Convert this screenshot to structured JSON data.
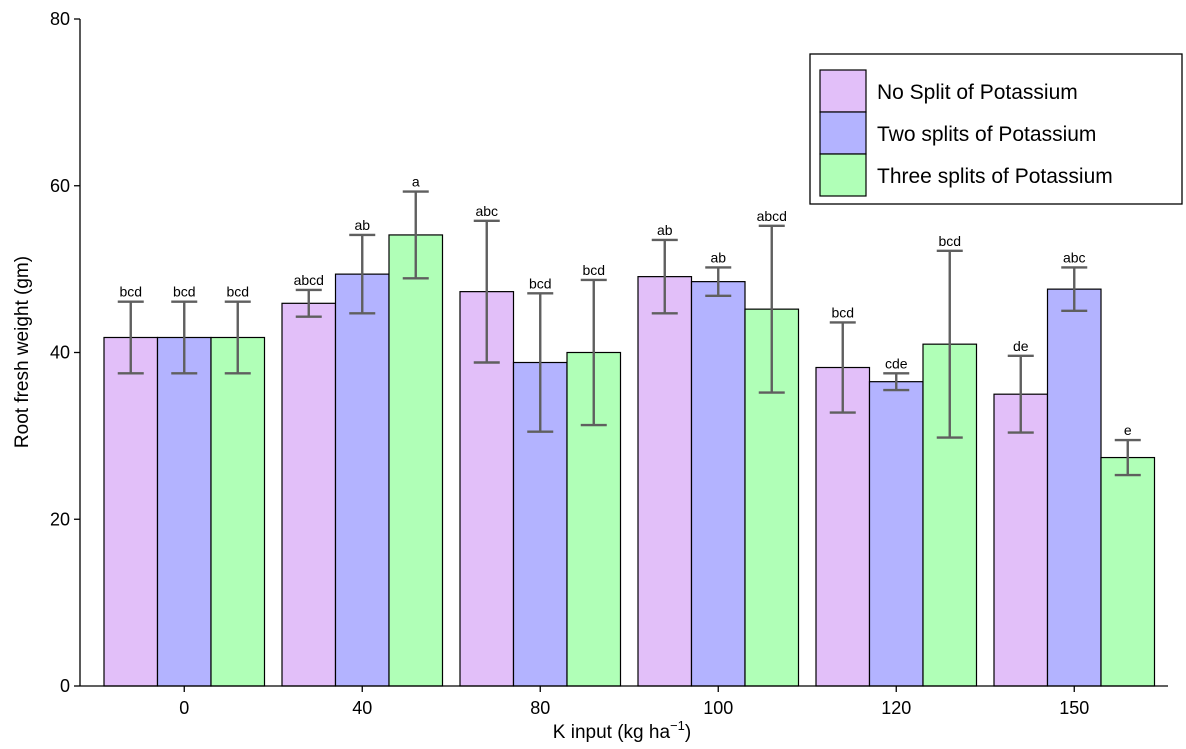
{
  "chart_data": {
    "type": "bar",
    "xlabel": "K input (kg ha⁻¹)",
    "ylabel": "Root fresh weight (gm)",
    "ylim": [
      0,
      80
    ],
    "yticks": [
      0,
      20,
      40,
      60,
      80
    ],
    "categories": [
      "0",
      "40",
      "80",
      "100",
      "120",
      "150"
    ],
    "legend_position": "top-right",
    "grid": false,
    "series": [
      {
        "name": "No Split of Potassium",
        "color": "#e2bff9",
        "values": [
          41.8,
          45.9,
          47.3,
          49.1,
          38.2,
          35.0
        ],
        "error": [
          4.3,
          1.6,
          8.5,
          4.4,
          5.4,
          4.6
        ],
        "labels": [
          "bcd",
          "abcd",
          "abc",
          "ab",
          "bcd",
          "de"
        ]
      },
      {
        "name": "Two splits of Potassium",
        "color": "#b3b3ff",
        "values": [
          41.8,
          49.4,
          38.8,
          48.5,
          36.5,
          47.6
        ],
        "error": [
          4.3,
          4.7,
          8.3,
          1.7,
          1.0,
          2.6
        ],
        "labels": [
          "bcd",
          "ab",
          "bcd",
          "ab",
          "cde",
          "abc"
        ]
      },
      {
        "name": "Three splits of Potassium",
        "color": "#b0ffb7",
        "values": [
          41.8,
          54.1,
          40.0,
          45.2,
          41.0,
          27.4
        ],
        "error": [
          4.3,
          5.2,
          8.7,
          10.0,
          11.2,
          2.1
        ],
        "labels": [
          "bcd",
          "a",
          "bcd",
          "abcd",
          "bcd",
          "e"
        ]
      }
    ]
  }
}
